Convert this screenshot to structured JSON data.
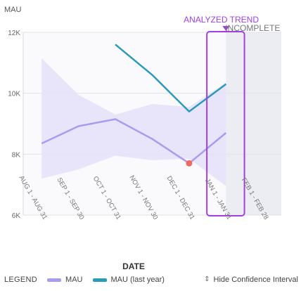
{
  "chart_data": {
    "type": "line",
    "ylabel": "MAU",
    "xlabel": "DATE",
    "categories": [
      "AUG 1 - AUG 31",
      "SEP 1 - SEP 30",
      "OCT 1 - OCT 31",
      "NOV 1 - NOV 30",
      "DEC 1 - DEC 31",
      "JAN 1 - JAN 31",
      "FEB 1 - FEB 28"
    ],
    "ylim": [
      6000,
      12000
    ],
    "yticks": [
      6000,
      8000,
      10000,
      12000
    ],
    "ytick_labels": [
      "6K",
      "8K",
      "10K",
      "12K"
    ],
    "series": [
      {
        "name": "MAU",
        "color": "#a99cf0",
        "values": [
          8350,
          8920,
          9150,
          8500,
          7700,
          8700,
          null
        ]
      },
      {
        "name": "MAU (last year)",
        "color": "#2b9ab8",
        "values": [
          null,
          null,
          11600,
          10600,
          9400,
          10300,
          null
        ]
      }
    ],
    "confidence_interval": {
      "color": "#e4e0fa",
      "upper": [
        11150,
        9950,
        9300,
        9650,
        9550,
        10350,
        null
      ],
      "lower": [
        7200,
        7500,
        7950,
        7800,
        7850,
        6950,
        null
      ]
    },
    "highlighted_point": {
      "x": "DEC 1 - DEC 31",
      "y": 7700,
      "color": "#ef6a5e"
    },
    "annotations": {
      "analyzed_trend_label": "ANALYZED TREND",
      "analyzed_trend_color": "#a040e0",
      "incomplete_label": "INCOMPLETE",
      "analyzed_category": "JAN 1 - JAN 31",
      "incomplete_category": "JAN 1 - JAN 31"
    },
    "grid": true
  },
  "legend": {
    "title": "LEGEND",
    "items": [
      {
        "label": "MAU",
        "color": "#a99cf0"
      },
      {
        "label": "MAU (last year)",
        "color": "#2b9ab8"
      }
    ],
    "toggle_label": "Hide Confidence Interval",
    "toggle_icon": "sort-arrows-icon"
  }
}
